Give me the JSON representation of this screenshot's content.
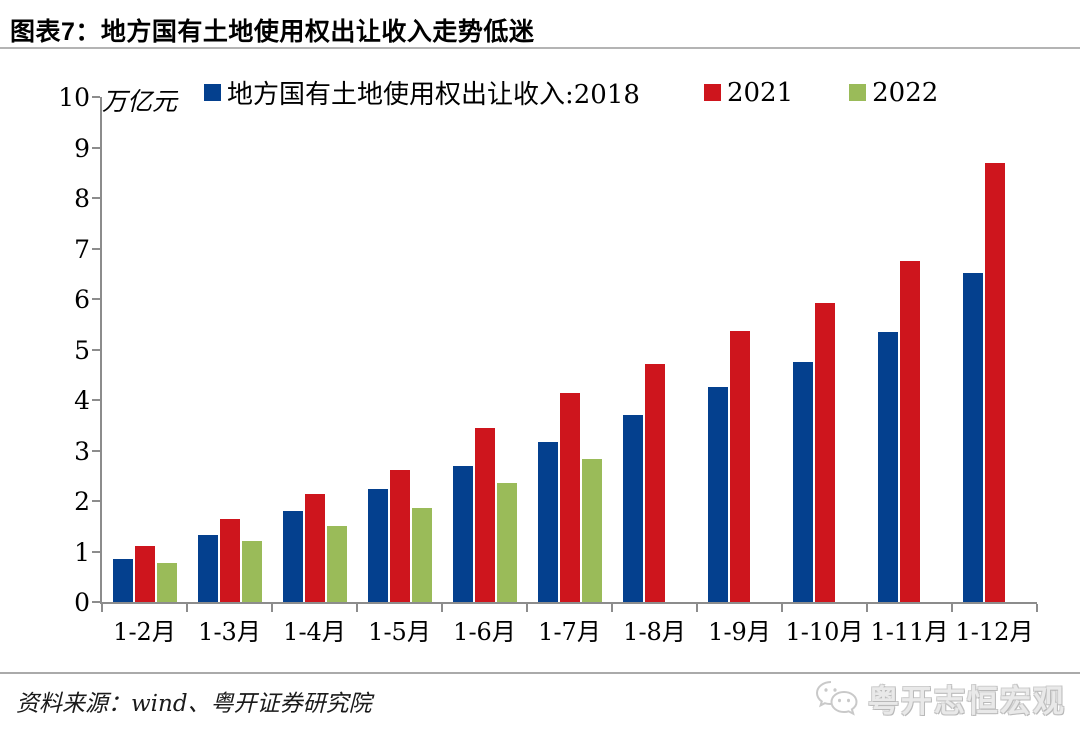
{
  "page": {
    "title": "图表7：地方国有土地使用权出让收入走势低迷",
    "source_note": "资料来源：wind、粤开证券研究院",
    "watermark_text": "粤开志恒宏观"
  },
  "chart_data": {
    "type": "bar",
    "title": "图表7：地方国有土地使用权出让收入走势低迷",
    "unit_label": "万亿元",
    "categories": [
      "1-2月",
      "1-3月",
      "1-4月",
      "1-5月",
      "1-6月",
      "1-7月",
      "1-8月",
      "1-9月",
      "1-10月",
      "1-11月",
      "1-12月"
    ],
    "series": [
      {
        "name": "地方国有土地使用权出让收入:2018",
        "color": "#04408E",
        "values": [
          0.85,
          1.33,
          1.8,
          2.23,
          2.7,
          3.16,
          3.71,
          4.25,
          4.76,
          5.34,
          6.51
        ]
      },
      {
        "name": "2021",
        "color": "#CE151D",
        "values": [
          1.1,
          1.65,
          2.14,
          2.61,
          3.44,
          4.14,
          4.71,
          5.36,
          5.93,
          6.76,
          8.7
        ]
      },
      {
        "name": "2022",
        "color": "#9ABB59",
        "values": [
          0.78,
          1.2,
          1.5,
          1.87,
          2.36,
          2.83,
          null,
          null,
          null,
          null,
          null
        ]
      }
    ],
    "ylim": [
      0,
      10
    ],
    "ytick_step": 1,
    "xlabel": "",
    "ylabel": "万亿元",
    "legend_position": "top",
    "grid": false
  }
}
